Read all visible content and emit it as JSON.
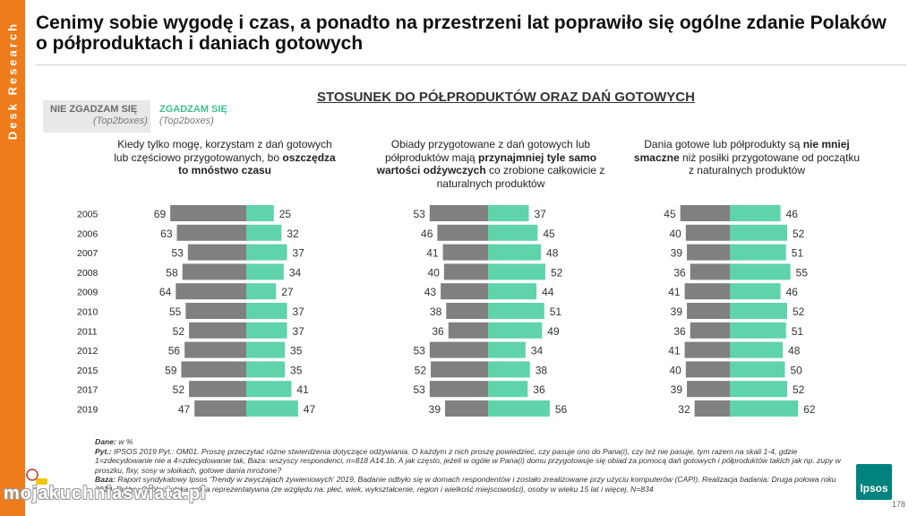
{
  "side_label": "Desk Research",
  "header": {
    "title": "Cenimy sobie wygodę i czas, a ponadto na przestrzeni lat poprawiło się ogólne zdanie Polaków o półproduktach i daniach gotowych"
  },
  "legend": {
    "negative": {
      "label": "NIE ZGADZAM SIĘ",
      "sub": "(Top2boxes)"
    },
    "positive": {
      "label": "ZGADZAM SIĘ",
      "sub": "(Top2boxes)"
    }
  },
  "subtitle": "STOSUNEK DO PÓŁPRODUKTÓW ORAZ DAŃ GOTOWYCH",
  "colors": {
    "negative": "#808080",
    "positive": "#5fd3aa",
    "accent": "#ee7c1a",
    "ipsos": "#00837e"
  },
  "chart_data": [
    {
      "type": "bar",
      "orientation": "horizontal-diverging",
      "title_parts": [
        {
          "text": "Kiedy tylko mogę, korzystam z dań gotowych lub częściowo przygotowanych, bo ",
          "bold": false
        },
        {
          "text": "oszczędza to mnóstwo czasu",
          "bold": true
        }
      ],
      "categories": [
        "2005",
        "2006",
        "2007",
        "2008",
        "2009",
        "2010",
        "2011",
        "2012",
        "2015",
        "2017",
        "2019"
      ],
      "series": [
        {
          "name": "NIE ZGADZAM SIĘ",
          "values": [
            69,
            63,
            53,
            58,
            64,
            55,
            52,
            56,
            59,
            52,
            47
          ]
        },
        {
          "name": "ZGADZAM SIĘ",
          "values": [
            25,
            32,
            37,
            34,
            27,
            37,
            37,
            35,
            35,
            41,
            47
          ]
        }
      ],
      "unit": "%"
    },
    {
      "type": "bar",
      "orientation": "horizontal-diverging",
      "title_parts": [
        {
          "text": "Obiady przygotowane z dań gotowych lub półproduktów mają ",
          "bold": false
        },
        {
          "text": "przynajmniej tyle samo wartości odżywczych",
          "bold": true
        },
        {
          "text": " co zrobione całkowicie z naturalnych produktów",
          "bold": false
        }
      ],
      "categories": [
        "2005",
        "2006",
        "2007",
        "2008",
        "2009",
        "2010",
        "2011",
        "2012",
        "2015",
        "2017",
        "2019"
      ],
      "series": [
        {
          "name": "NIE ZGADZAM SIĘ",
          "values": [
            53,
            46,
            41,
            40,
            43,
            38,
            36,
            53,
            52,
            53,
            39
          ]
        },
        {
          "name": "ZGADZAM SIĘ",
          "values": [
            37,
            45,
            48,
            52,
            44,
            51,
            49,
            34,
            38,
            36,
            56
          ]
        }
      ],
      "unit": "%"
    },
    {
      "type": "bar",
      "orientation": "horizontal-diverging",
      "title_parts": [
        {
          "text": "Dania gotowe lub półprodukty są ",
          "bold": false
        },
        {
          "text": "nie mniej smaczne",
          "bold": true
        },
        {
          "text": " niż posiłki przygotowane od początku z naturalnych produktów",
          "bold": false
        }
      ],
      "categories": [
        "2005",
        "2006",
        "2007",
        "2008",
        "2009",
        "2010",
        "2011",
        "2012",
        "2015",
        "2017",
        "2019"
      ],
      "series": [
        {
          "name": "NIE ZGADZAM SIĘ",
          "values": [
            45,
            40,
            39,
            36,
            41,
            39,
            36,
            41,
            40,
            39,
            32
          ]
        },
        {
          "name": "ZGADZAM SIĘ",
          "values": [
            46,
            52,
            51,
            55,
            46,
            52,
            51,
            48,
            50,
            52,
            62
          ]
        }
      ],
      "unit": "%"
    }
  ],
  "footnote": {
    "dane_label": "Dane:",
    "dane_text": " w %",
    "pyt_label": "Pyt.:",
    "pyt_text": " IPSOS 2019 Pyt.: OM01. Proszę przeczytać różne stwierdzenia dotyczące odżywiania. O każdym z nich proszę powiedzieć, czy pasuje ono do Pana(i), czy też nie pasuje, tym razem na skali 1-4, gdzie 1=zdecydowanie nie a 4=zdecydowanie tak, Baza: wszyscy respondenci, n=818 A14.1b. A jak często, jeżeli w ogóle w Pana(i) domu przygotowuje się obiad za pomocą dań gotowych i półproduktów takich jak np. zupy w proszku, fixy, sosy w słoikach, gotowe dania mrożone?",
    "baza_label": "Baza:",
    "baza_text": " Raport syndykatowy Ipsos 'Trendy w zwyczajach żywieniowych' 2019, Badanie odbyło się w domach respondentów i zostało zrealizowane przy użyciu komputerów (CAPI). Realizacja badania: Druga połowa roku 2019. Próba: Ogólnopolska próba reprezentatywna (ze względu na: płeć, wiek, wykształcenie, region i wielkość miejscowości), osoby w wieku 15 lat i więcej, N=834"
  },
  "logo_text": "Ipsos",
  "page_number": "178",
  "watermark": "mojakuchniaswiata.pl"
}
